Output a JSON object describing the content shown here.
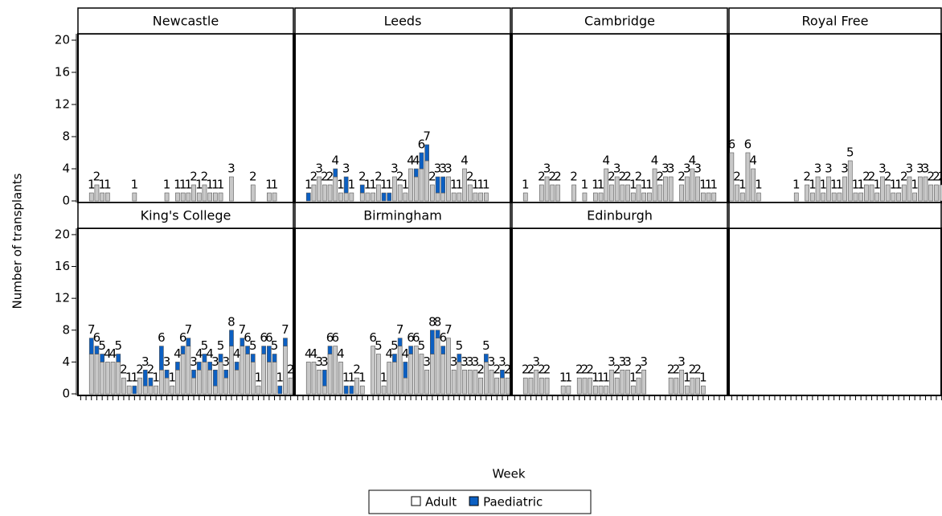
{
  "chart_data": {
    "type": "bar",
    "stacked": true,
    "y_label": "Number of transplants",
    "x_label": "Week",
    "ylim": [
      -0.2,
      20.8
    ],
    "yticks": [
      0,
      4,
      8,
      12,
      16,
      20
    ],
    "series": [
      {
        "name": "Adult",
        "color": "#c8c8c8"
      },
      {
        "name": "Paediatric",
        "color": "#0b5fc2"
      }
    ],
    "categories": [
      null,
      null,
      null,
      null,
      null,
      null,
      null,
      null,
      null,
      null,
      null,
      null,
      null,
      null,
      null,
      null,
      null,
      null,
      null,
      null,
      null,
      null,
      null,
      null,
      null,
      null,
      null,
      null,
      null,
      null,
      null,
      null,
      null,
      null,
      null,
      null,
      null,
      null,
      null,
      null
    ],
    "panels": [
      {
        "title": "Newcastle",
        "series": [
          {
            "values": [
              0,
              0,
              1,
              2,
              1,
              1,
              0,
              0,
              0,
              0,
              1,
              0,
              0,
              0,
              0,
              0,
              1,
              0,
              1,
              1,
              1,
              2,
              1,
              2,
              1,
              1,
              1,
              0,
              3,
              0,
              0,
              0,
              2,
              0,
              0,
              1,
              1,
              0,
              0,
              0
            ]
          },
          {
            "values": [
              0,
              0,
              0,
              0,
              0,
              0,
              0,
              0,
              0,
              0,
              0,
              0,
              0,
              0,
              0,
              0,
              0,
              0,
              0,
              0,
              0,
              0,
              0,
              0,
              0,
              0,
              0,
              0,
              0,
              0,
              0,
              0,
              0,
              0,
              0,
              0,
              0,
              0,
              0,
              0
            ]
          }
        ],
        "value_labels": [
          null,
          null,
          1,
          2,
          1,
          1,
          null,
          null,
          null,
          null,
          1,
          null,
          null,
          null,
          null,
          null,
          1,
          null,
          1,
          1,
          1,
          2,
          1,
          2,
          1,
          1,
          1,
          null,
          3,
          null,
          null,
          null,
          2,
          null,
          null,
          1,
          1,
          null,
          null,
          null
        ]
      },
      {
        "title": "Leeds",
        "series": [
          {
            "values": [
              0,
              0,
              0,
              2,
              3,
              2,
              2,
              3,
              1,
              1,
              1,
              0,
              1,
              1,
              1,
              2,
              0,
              0,
              3,
              2,
              1,
              4,
              3,
              4,
              5,
              2,
              1,
              1,
              3,
              1,
              1,
              4,
              2,
              1,
              1,
              1,
              0,
              0,
              0,
              0
            ]
          },
          {
            "values": [
              0,
              0,
              1,
              0,
              0,
              0,
              0,
              1,
              0,
              2,
              0,
              0,
              1,
              0,
              0,
              0,
              1,
              1,
              0,
              0,
              0,
              0,
              1,
              2,
              2,
              0,
              2,
              2,
              0,
              0,
              0,
              0,
              0,
              0,
              0,
              0,
              0,
              0,
              0,
              0
            ]
          }
        ],
        "value_labels": [
          null,
          null,
          1,
          2,
          3,
          2,
          2,
          4,
          1,
          3,
          1,
          null,
          2,
          1,
          1,
          2,
          1,
          1,
          3,
          2,
          1,
          4,
          4,
          6,
          7,
          2,
          3,
          3,
          3,
          1,
          1,
          4,
          2,
          1,
          1,
          1,
          null,
          null,
          null,
          null
        ]
      },
      {
        "title": "Cambridge",
        "series": [
          {
            "values": [
              0,
              0,
              1,
              0,
              0,
              2,
              3,
              2,
              2,
              0,
              0,
              2,
              0,
              1,
              0,
              1,
              1,
              4,
              2,
              3,
              2,
              2,
              1,
              2,
              1,
              1,
              4,
              2,
              3,
              3,
              0,
              2,
              3,
              4,
              3,
              1,
              1,
              1,
              0,
              0
            ]
          },
          {
            "values": [
              0,
              0,
              0,
              0,
              0,
              0,
              0,
              0,
              0,
              0,
              0,
              0,
              0,
              0,
              0,
              0,
              0,
              0,
              0,
              0,
              0,
              0,
              0,
              0,
              0,
              0,
              0,
              0,
              0,
              0,
              0,
              0,
              0,
              0,
              0,
              0,
              0,
              0,
              0,
              0
            ]
          }
        ],
        "value_labels": [
          null,
          null,
          1,
          null,
          null,
          2,
          3,
          2,
          2,
          null,
          null,
          2,
          null,
          1,
          null,
          1,
          1,
          4,
          2,
          3,
          2,
          2,
          1,
          2,
          1,
          1,
          4,
          2,
          3,
          3,
          null,
          2,
          3,
          4,
          3,
          1,
          1,
          1,
          null,
          null
        ]
      },
      {
        "title": "Royal Free",
        "series": [
          {
            "values": [
              6,
              2,
              1,
              6,
              4,
              1,
              0,
              0,
              0,
              0,
              0,
              0,
              1,
              0,
              2,
              1,
              3,
              1,
              3,
              1,
              1,
              3,
              5,
              1,
              1,
              2,
              2,
              1,
              3,
              2,
              1,
              1,
              2,
              3,
              1,
              3,
              3,
              2,
              2,
              2
            ]
          },
          {
            "values": [
              0,
              0,
              0,
              0,
              0,
              0,
              0,
              0,
              0,
              0,
              0,
              0,
              0,
              0,
              0,
              0,
              0,
              0,
              0,
              0,
              0,
              0,
              0,
              0,
              0,
              0,
              0,
              0,
              0,
              0,
              0,
              0,
              0,
              0,
              0,
              0,
              0,
              0,
              0,
              0
            ]
          }
        ],
        "value_labels": [
          6,
          2,
          1,
          6,
          4,
          1,
          null,
          null,
          null,
          null,
          null,
          null,
          1,
          null,
          2,
          1,
          3,
          1,
          3,
          1,
          1,
          3,
          5,
          1,
          1,
          2,
          2,
          1,
          3,
          2,
          1,
          1,
          2,
          3,
          1,
          3,
          3,
          2,
          2,
          2
        ]
      },
      {
        "title": "King's College",
        "series": [
          {
            "values": [
              0,
              0,
              5,
              5,
              4,
              4,
              4,
              4,
              2,
              1,
              0,
              2,
              1,
              1,
              1,
              3,
              2,
              1,
              3,
              5,
              6,
              2,
              3,
              4,
              3,
              1,
              4,
              2,
              6,
              3,
              6,
              5,
              4,
              1,
              5,
              4,
              4,
              0,
              6,
              2
            ]
          },
          {
            "values": [
              0,
              0,
              2,
              1,
              1,
              0,
              0,
              1,
              0,
              0,
              1,
              0,
              2,
              1,
              0,
              3,
              1,
              0,
              1,
              1,
              1,
              1,
              1,
              1,
              1,
              2,
              1,
              1,
              2,
              1,
              1,
              1,
              1,
              0,
              1,
              2,
              1,
              1,
              1,
              0
            ]
          }
        ],
        "value_labels": [
          null,
          null,
          7,
          6,
          5,
          4,
          4,
          5,
          2,
          1,
          1,
          2,
          3,
          2,
          1,
          6,
          3,
          1,
          4,
          6,
          7,
          3,
          4,
          5,
          4,
          3,
          5,
          3,
          8,
          4,
          7,
          6,
          5,
          1,
          6,
          6,
          5,
          1,
          7,
          2
        ]
      },
      {
        "title": "Birmingham",
        "series": [
          {
            "values": [
              0,
              0,
              4,
              4,
              3,
              1,
              5,
              6,
              4,
              0,
              0,
              2,
              1,
              0,
              6,
              5,
              1,
              4,
              4,
              6,
              2,
              5,
              6,
              5,
              3,
              5,
              7,
              5,
              7,
              3,
              4,
              3,
              3,
              3,
              2,
              4,
              3,
              2,
              2,
              2
            ]
          },
          {
            "values": [
              0,
              0,
              0,
              0,
              0,
              2,
              1,
              0,
              0,
              1,
              1,
              0,
              0,
              0,
              0,
              0,
              0,
              0,
              1,
              1,
              2,
              1,
              0,
              0,
              0,
              3,
              1,
              1,
              0,
              0,
              1,
              0,
              0,
              0,
              0,
              1,
              0,
              0,
              1,
              0
            ]
          }
        ],
        "value_labels": [
          null,
          null,
          4,
          4,
          3,
          3,
          6,
          6,
          4,
          1,
          1,
          2,
          1,
          null,
          6,
          5,
          1,
          4,
          5,
          7,
          4,
          6,
          6,
          5,
          3,
          8,
          8,
          6,
          7,
          3,
          5,
          3,
          3,
          3,
          2,
          5,
          3,
          2,
          3,
          2
        ]
      },
      {
        "title": "Edinburgh",
        "series": [
          {
            "values": [
              0,
              0,
              2,
              2,
              3,
              2,
              2,
              0,
              0,
              1,
              1,
              0,
              2,
              2,
              2,
              1,
              1,
              1,
              3,
              2,
              3,
              3,
              1,
              2,
              3,
              0,
              0,
              0,
              0,
              2,
              2,
              3,
              1,
              2,
              2,
              1,
              0,
              0,
              0,
              0
            ]
          },
          {
            "values": [
              0,
              0,
              0,
              0,
              0,
              0,
              0,
              0,
              0,
              0,
              0,
              0,
              0,
              0,
              0,
              0,
              0,
              0,
              0,
              0,
              0,
              0,
              0,
              0,
              0,
              0,
              0,
              0,
              0,
              0,
              0,
              0,
              0,
              0,
              0,
              0,
              0,
              0,
              0,
              0
            ]
          }
        ],
        "value_labels": [
          null,
          null,
          2,
          2,
          3,
          2,
          2,
          null,
          null,
          1,
          1,
          null,
          2,
          2,
          2,
          1,
          1,
          1,
          3,
          2,
          3,
          3,
          1,
          2,
          3,
          null,
          null,
          null,
          null,
          2,
          2,
          3,
          1,
          2,
          2,
          1,
          null,
          null,
          null,
          null
        ]
      }
    ]
  }
}
